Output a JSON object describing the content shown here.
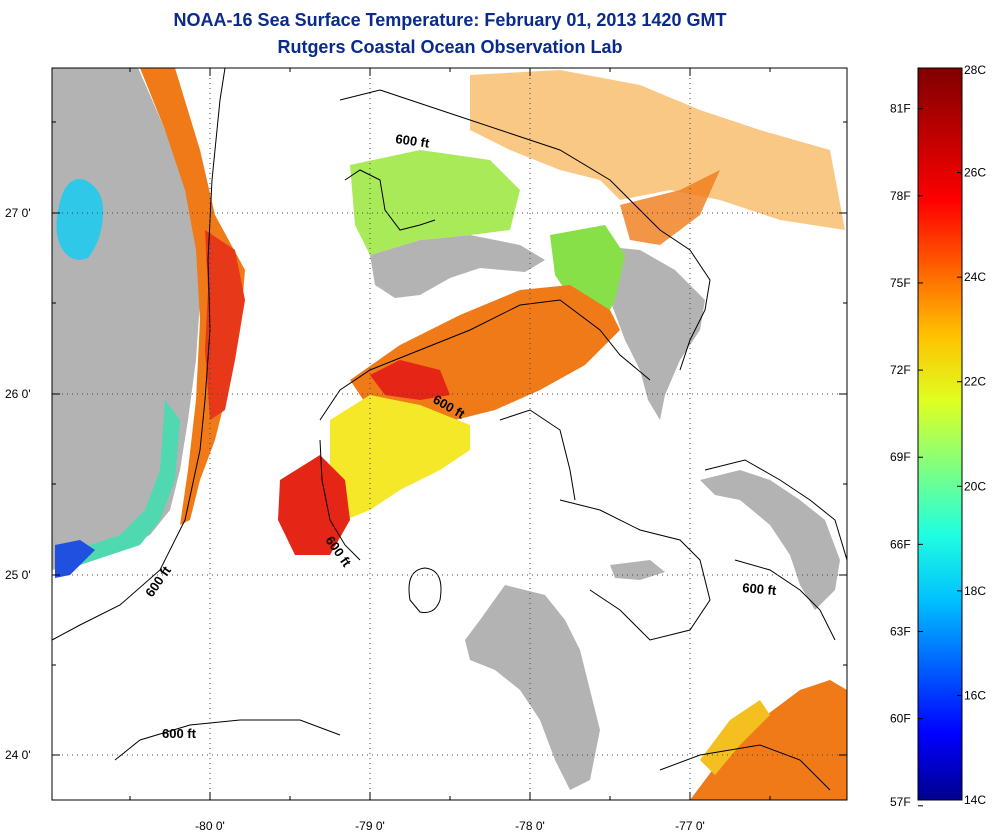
{
  "title": "NOAA-16 Sea Surface Temperature:  February 01, 2013 1420 GMT",
  "subtitle": "Rutgers Coastal Ocean Observation Lab",
  "map": {
    "lat_ticks": [
      "27 0'",
      "26 0'",
      "25 0'",
      "24 0'"
    ],
    "lon_ticks": [
      "-80 0'",
      "-79 0'",
      "-78 0'",
      "-77 0'"
    ],
    "contour_labels": [
      "600 ft",
      "600 ft",
      "600 ft",
      "600 ft",
      "600 ft",
      "600 ft"
    ],
    "colors": {
      "land": "#b3b3b3",
      "cloud": "#ffffff",
      "warm": "#f07a18",
      "hot": "#e52515",
      "mid": "#f0e020",
      "cool": "#98e640",
      "cold": "#20d0e0"
    }
  },
  "colorbar": {
    "celsius": [
      "28C",
      "26C",
      "24C",
      "22C",
      "20C",
      "18C",
      "16C",
      "14C"
    ],
    "fahrenheit": [
      "81F",
      "78F",
      "75F",
      "72F",
      "69F",
      "66F",
      "63F",
      "60F",
      "57F"
    ],
    "stops": [
      "#00008f",
      "#0000ff",
      "#0060ff",
      "#00c0ff",
      "#20ffdf",
      "#80ff80",
      "#dfff20",
      "#ffc000",
      "#ff6000",
      "#ff0000",
      "#bf0000",
      "#800000"
    ]
  }
}
